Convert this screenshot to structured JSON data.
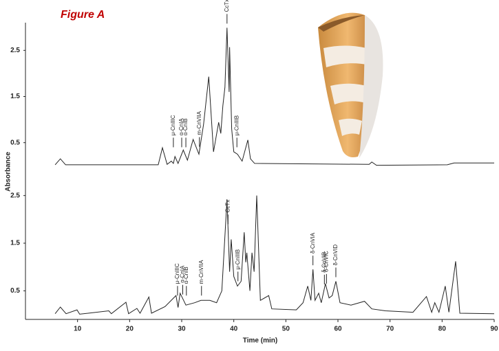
{
  "chart_data": {
    "type": "line",
    "title": "Figure A",
    "xlabel": "Time (min)",
    "ylabel": "Absorbance",
    "xlim": [
      0,
      90
    ],
    "xticks": [
      10,
      20,
      30,
      40,
      50,
      60,
      70,
      80,
      90
    ],
    "panels": [
      {
        "ylim": [
          -0.1,
          3.1
        ],
        "yticks": [
          0.5,
          1.5,
          2.5
        ],
        "series": [
          {
            "color": "#222222",
            "x": [
              5.7,
              6.7,
              7.7,
              25.5,
              26.3,
              27.2,
              28,
              28.4,
              28.7,
              29.3,
              30.3,
              31.1,
              32.2,
              33.3,
              34.2,
              35.2,
              36.1,
              37.1,
              37.5,
              37.9,
              38.3,
              38.7,
              39.1,
              39.2,
              39.6,
              40,
              40.7,
              41.6,
              42.7,
              43.2,
              44,
              66,
              66.5,
              67.4,
              81,
              82.3,
              90
            ],
            "values": [
              0.02,
              0.15,
              0.02,
              0.02,
              0.39,
              0.03,
              0.1,
              0.05,
              0.2,
              0.05,
              0.34,
              0.12,
              0.57,
              0.25,
              0.9,
              1.93,
              0.3,
              0.94,
              0.7,
              1.3,
              1.7,
              2.99,
              1.6,
              2.57,
              0.8,
              0.3,
              0.25,
              0.1,
              0.56,
              0.15,
              0.05,
              0.03,
              0.08,
              0.01,
              0.02,
              0.06,
              0.06
            ]
          }
        ],
        "annotations": [
          {
            "text": "μ-CnIIIC",
            "x": 28.4
          },
          {
            "text": "α-CnIA",
            "x": 30.0
          },
          {
            "text": "α-CnIB",
            "x": 30.8
          },
          {
            "text": "m-CnVIIA",
            "x": 33.4
          },
          {
            "text": "CcTx",
            "x": 38.7
          },
          {
            "text": "μ-CnIIIB",
            "x": 40.6
          }
        ]
      },
      {
        "ylim": [
          -0.1,
          3.0
        ],
        "yticks": [
          0.5,
          1.5,
          2.5
        ],
        "series": [
          {
            "color": "#222222",
            "x": [
              5.7,
              6.7,
              7.8,
              9.9,
              10.4,
              16,
              16.5,
              19.3,
              19.8,
              21.4,
              22,
              23.7,
              24.2,
              26.8,
              28.9,
              29.3,
              29.7,
              30.8,
              32.5,
              33.7,
              35.4,
              36.7,
              37.7,
              38.7,
              39.2,
              39.5,
              40,
              40.7,
              41.4,
              42,
              42.3,
              42.5,
              43.1,
              43.5,
              43.9,
              44.4,
              45.1,
              46.7,
              47.3,
              52,
              53.3,
              54.2,
              54.8,
              55.2,
              55.6,
              56.3,
              56.8,
              57.6,
              58.3,
              58.9,
              59.6,
              60.4,
              62.5,
              65.1,
              66.5,
              69.1,
              74.4,
              77,
              78,
              78.6,
              79.4,
              80.6,
              81.3,
              82.6,
              83.4,
              90
            ],
            "values": [
              0.02,
              0.16,
              0.02,
              0.1,
              0.01,
              0.08,
              0.02,
              0.26,
              0.02,
              0.13,
              0.03,
              0.37,
              0.03,
              0.17,
              0.4,
              0.15,
              0.45,
              0.2,
              0.25,
              0.3,
              0.3,
              0.25,
              0.5,
              2.42,
              0.9,
              1.58,
              0.8,
              0.6,
              0.7,
              1.73,
              1.1,
              1.3,
              0.5,
              1.3,
              0.9,
              2.5,
              0.3,
              0.4,
              0.12,
              0.1,
              0.25,
              0.6,
              0.3,
              0.95,
              0.3,
              0.45,
              0.25,
              0.65,
              0.35,
              0.4,
              0.7,
              0.25,
              0.2,
              0.28,
              0.12,
              0.08,
              0.05,
              0.38,
              0.05,
              0.25,
              0.05,
              0.6,
              0.05,
              1.12,
              0.03,
              0.02
            ]
          }
        ],
        "annotations": [
          {
            "text": "μ-CnIIIC",
            "x": 29.2
          },
          {
            "text": "α-CnIA",
            "x": 30.2
          },
          {
            "text": "α-CnIB",
            "x": 30.9
          },
          {
            "text": "m-CnVIIA",
            "x": 33.8
          },
          {
            "text": "CcTx",
            "x": 38.9
          },
          {
            "text": "μ-CnIIIB",
            "x": 40.8
          },
          {
            "text": "δ-CnVIA",
            "x": 55.2
          },
          {
            "text": "δ-CnVIB",
            "x": 57.4
          },
          {
            "text": "δ-CnVIC",
            "x": 57.8
          },
          {
            "text": "δ-CnVID",
            "x": 59.6
          }
        ]
      }
    ]
  }
}
